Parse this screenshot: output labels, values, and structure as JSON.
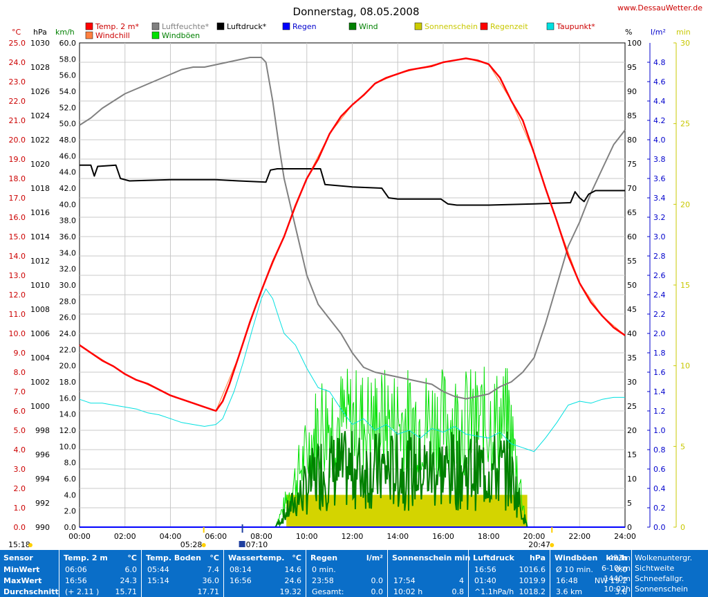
{
  "header": {
    "title": "Donnerstag, 08.05.2008",
    "website": "www.DessauWetter.de"
  },
  "legend": {
    "row1": [
      {
        "label": "Temp. 2 m*",
        "color": "#ff0000",
        "text_color": "#cc0000"
      },
      {
        "label": "Luftfeuchte*",
        "color": "#808080",
        "text_color": "#808080"
      },
      {
        "label": "Luftdruck*",
        "color": "#000000",
        "text_color": "#000000"
      },
      {
        "label": "Regen",
        "color": "#0000ff",
        "text_color": "#0000cc"
      },
      {
        "label": "Wind",
        "color": "#008000",
        "text_color": "#008000"
      },
      {
        "label": "Sonnenschein",
        "color": "#cccc00",
        "text_color": "#c8c800"
      },
      {
        "label": "Regenzeit",
        "color": "#ff0000",
        "text_color": "#c8c800"
      },
      {
        "label": "Taupunkt*",
        "color": "#00e0e0",
        "text_color": "#cc0000"
      }
    ],
    "row2": [
      {
        "label": "Windchill",
        "color": "#ff8040",
        "text_color": "#cc0000"
      },
      {
        "label": "Windböen",
        "color": "#00e000",
        "text_color": "#008000"
      }
    ]
  },
  "axis_units": {
    "temp": "°C",
    "pressure": "hPa",
    "wind": "km/h",
    "humidity": "%",
    "rain": "l/m²",
    "sunshine": "min"
  },
  "axis_ticks": {
    "temp": [
      "25.0",
      "24.0",
      "23.0",
      "22.0",
      "21.0",
      "20.0",
      "19.0",
      "18.0",
      "17.0",
      "16.0",
      "15.0",
      "14.0",
      "13.0",
      "12.0",
      "11.0",
      "10.0",
      "9.0",
      "8.0",
      "7.0",
      "6.0",
      "5.0",
      "4.0",
      "3.0",
      "2.0",
      "1.0",
      "0.0"
    ],
    "pressure": [
      "1030",
      "1028",
      "1026",
      "1024",
      "1022",
      "1020",
      "1018",
      "1016",
      "1014",
      "1012",
      "1010",
      "1008",
      "1006",
      "1004",
      "1002",
      "1000",
      "998",
      "996",
      "994",
      "992",
      "990"
    ],
    "wind": [
      "60.0",
      "58.0",
      "56.0",
      "54.0",
      "52.0",
      "50.0",
      "48.0",
      "46.0",
      "44.0",
      "42.0",
      "40.0",
      "38.0",
      "36.0",
      "34.0",
      "32.0",
      "30.0",
      "28.0",
      "26.0",
      "24.0",
      "22.0",
      "20.0",
      "18.0",
      "16.0",
      "14.0",
      "12.0",
      "10.0",
      "8.0",
      "6.0",
      "4.0",
      "2.0",
      "0.0"
    ],
    "humidity": [
      "100",
      "95",
      "90",
      "85",
      "80",
      "75",
      "70",
      "65",
      "60",
      "55",
      "50",
      "45",
      "40",
      "35",
      "30",
      "25",
      "20",
      "15",
      "10",
      "5",
      "0"
    ],
    "rain": [
      "4.8",
      "4.6",
      "4.4",
      "4.2",
      "4.0",
      "3.8",
      "3.6",
      "3.4",
      "3.2",
      "3.0",
      "2.8",
      "2.6",
      "2.4",
      "2.2",
      "2.0",
      "1.8",
      "1.6",
      "1.4",
      "1.2",
      "1.0",
      "0.8",
      "0.6",
      "0.4",
      "0.2",
      "0.0"
    ],
    "sunshine": [
      "30",
      "25",
      "20",
      "15",
      "10",
      "5",
      "0"
    ],
    "time": [
      "00:00",
      "02:00",
      "04:00",
      "06:00",
      "08:00",
      "10:00",
      "12:00",
      "14:00",
      "16:00",
      "18:00",
      "20:00",
      "22:00",
      "24:00"
    ]
  },
  "markers": {
    "moonset": "15:18",
    "sunrise": "05:28",
    "moonrise": "07:10",
    "sunset": "20:47"
  },
  "chart_data": {
    "type": "line",
    "title": "Donnerstag, 08.05.2008",
    "x_unit": "hours",
    "x_range": [
      0,
      24
    ],
    "axes": {
      "temp_range": [
        0,
        25
      ],
      "pressure_range": [
        990,
        1030
      ],
      "wind_range": [
        0,
        60
      ],
      "humidity_range": [
        0,
        100
      ],
      "rain_range": [
        0,
        5
      ],
      "sunshine_range": [
        0,
        30
      ]
    },
    "series": [
      {
        "name": "Temp. 2 m*",
        "axis": "temp",
        "color": "#ff0000",
        "points": [
          [
            0,
            9.4
          ],
          [
            0.5,
            9.0
          ],
          [
            1,
            8.6
          ],
          [
            1.5,
            8.3
          ],
          [
            2,
            7.9
          ],
          [
            2.5,
            7.6
          ],
          [
            3,
            7.4
          ],
          [
            3.5,
            7.1
          ],
          [
            4,
            6.8
          ],
          [
            4.5,
            6.6
          ],
          [
            5,
            6.4
          ],
          [
            5.5,
            6.2
          ],
          [
            6,
            6.0
          ],
          [
            6.3,
            6.5
          ],
          [
            6.6,
            7.4
          ],
          [
            7,
            8.8
          ],
          [
            7.5,
            10.6
          ],
          [
            8,
            12.2
          ],
          [
            8.5,
            13.7
          ],
          [
            9,
            15.0
          ],
          [
            9.5,
            16.6
          ],
          [
            10,
            18.0
          ],
          [
            10.5,
            19.0
          ],
          [
            11,
            20.3
          ],
          [
            11.5,
            21.2
          ],
          [
            12,
            21.8
          ],
          [
            12.5,
            22.3
          ],
          [
            13,
            22.9
          ],
          [
            13.5,
            23.2
          ],
          [
            14,
            23.4
          ],
          [
            14.5,
            23.6
          ],
          [
            15,
            23.7
          ],
          [
            15.5,
            23.8
          ],
          [
            16,
            24.0
          ],
          [
            16.5,
            24.1
          ],
          [
            17,
            24.2
          ],
          [
            17.5,
            24.1
          ],
          [
            18,
            23.9
          ],
          [
            18.5,
            23.2
          ],
          [
            19,
            22.0
          ],
          [
            19.5,
            21.0
          ],
          [
            20,
            19.3
          ],
          [
            20.5,
            17.5
          ],
          [
            21,
            15.8
          ],
          [
            21.5,
            14.0
          ],
          [
            22,
            12.6
          ],
          [
            22.5,
            11.6
          ],
          [
            23,
            10.9
          ],
          [
            23.5,
            10.3
          ],
          [
            24,
            9.9
          ]
        ]
      },
      {
        "name": "Windchill",
        "axis": "temp",
        "color": "#ff8040",
        "points": [
          [
            0,
            9.4
          ],
          [
            2,
            7.9
          ],
          [
            4,
            6.8
          ],
          [
            6,
            6.0
          ],
          [
            7,
            8.8
          ],
          [
            8,
            12.2
          ],
          [
            9,
            15.0
          ],
          [
            10,
            18.0
          ],
          [
            11,
            20.3
          ],
          [
            12,
            21.8
          ],
          [
            13,
            22.9
          ],
          [
            14,
            23.4
          ],
          [
            15,
            23.7
          ],
          [
            16,
            24.0
          ],
          [
            17,
            24.2
          ],
          [
            18,
            23.9
          ],
          [
            19,
            22.0
          ],
          [
            20,
            19.3
          ],
          [
            21,
            15.8
          ],
          [
            22,
            12.6
          ],
          [
            23,
            10.9
          ],
          [
            24,
            9.9
          ]
        ]
      },
      {
        "name": "Luftfeuchte*",
        "axis": "humidity",
        "color": "#808080",
        "points": [
          [
            0,
            83
          ],
          [
            0.5,
            84.5
          ],
          [
            1,
            86.5
          ],
          [
            1.5,
            88
          ],
          [
            2,
            89.5
          ],
          [
            2.5,
            90.5
          ],
          [
            3,
            91.5
          ],
          [
            3.5,
            92.5
          ],
          [
            4,
            93.5
          ],
          [
            4.5,
            94.5
          ],
          [
            5,
            95
          ],
          [
            5.5,
            95
          ],
          [
            6,
            95.5
          ],
          [
            6.5,
            96
          ],
          [
            7,
            96.5
          ],
          [
            7.5,
            97
          ],
          [
            8,
            97
          ],
          [
            8.2,
            96
          ],
          [
            8.5,
            88
          ],
          [
            8.8,
            78
          ],
          [
            9,
            72
          ],
          [
            9.5,
            62
          ],
          [
            10,
            52
          ],
          [
            10.5,
            46
          ],
          [
            11,
            43
          ],
          [
            11.5,
            40
          ],
          [
            12,
            36
          ],
          [
            12.5,
            33
          ],
          [
            13,
            32
          ],
          [
            13.5,
            31.5
          ],
          [
            14,
            31
          ],
          [
            14.5,
            30.5
          ],
          [
            15,
            30
          ],
          [
            15.5,
            29.5
          ],
          [
            16,
            28
          ],
          [
            16.5,
            27
          ],
          [
            17,
            26.5
          ],
          [
            17.5,
            27
          ],
          [
            18,
            27.5
          ],
          [
            18.5,
            29
          ],
          [
            19,
            30
          ],
          [
            19.5,
            32
          ],
          [
            20,
            35
          ],
          [
            20.5,
            42
          ],
          [
            21,
            50
          ],
          [
            21.5,
            58
          ],
          [
            22,
            63
          ],
          [
            22.5,
            69
          ],
          [
            23,
            74
          ],
          [
            23.5,
            79
          ],
          [
            24,
            82
          ]
        ]
      },
      {
        "name": "Luftdruck*",
        "axis": "pressure",
        "color": "#000000",
        "points": [
          [
            0,
            1019.9
          ],
          [
            0.5,
            1019.9
          ],
          [
            0.65,
            1019.0
          ],
          [
            0.8,
            1019.8
          ],
          [
            1.6,
            1019.9
          ],
          [
            1.8,
            1018.8
          ],
          [
            2.2,
            1018.6
          ],
          [
            4,
            1018.7
          ],
          [
            6,
            1018.7
          ],
          [
            7,
            1018.6
          ],
          [
            8.2,
            1018.5
          ],
          [
            8.4,
            1019.5
          ],
          [
            8.7,
            1019.6
          ],
          [
            10.6,
            1019.6
          ],
          [
            10.8,
            1018.3
          ],
          [
            12,
            1018.1
          ],
          [
            13.3,
            1018.0
          ],
          [
            13.6,
            1017.2
          ],
          [
            14,
            1017.1
          ],
          [
            15.9,
            1017.1
          ],
          [
            16.2,
            1016.7
          ],
          [
            16.6,
            1016.6
          ],
          [
            18,
            1016.6
          ],
          [
            20,
            1016.7
          ],
          [
            21.6,
            1016.8
          ],
          [
            21.8,
            1017.7
          ],
          [
            22,
            1017.2
          ],
          [
            22.2,
            1016.9
          ],
          [
            22.4,
            1017.5
          ],
          [
            22.7,
            1017.8
          ],
          [
            24,
            1017.8
          ]
        ]
      },
      {
        "name": "Taupunkt*",
        "axis": "temp",
        "color": "#00e0e0",
        "points": [
          [
            0,
            6.6
          ],
          [
            0.5,
            6.4
          ],
          [
            1,
            6.4
          ],
          [
            1.5,
            6.3
          ],
          [
            2,
            6.2
          ],
          [
            2.5,
            6.1
          ],
          [
            3,
            5.9
          ],
          [
            3.5,
            5.8
          ],
          [
            4,
            5.6
          ],
          [
            4.5,
            5.4
          ],
          [
            5,
            5.3
          ],
          [
            5.5,
            5.2
          ],
          [
            6,
            5.3
          ],
          [
            6.3,
            5.6
          ],
          [
            6.8,
            7.0
          ],
          [
            7.2,
            8.5
          ],
          [
            7.6,
            10.2
          ],
          [
            8,
            11.8
          ],
          [
            8.2,
            12.3
          ],
          [
            8.5,
            11.8
          ],
          [
            8.8,
            10.7
          ],
          [
            9,
            10.0
          ],
          [
            9.5,
            9.4
          ],
          [
            10,
            8.2
          ],
          [
            10.5,
            7.2
          ],
          [
            11,
            7.0
          ],
          [
            11.5,
            6.1
          ],
          [
            12,
            5.3
          ],
          [
            12.5,
            5.6
          ],
          [
            13,
            5.0
          ],
          [
            13.5,
            5.3
          ],
          [
            14,
            4.8
          ],
          [
            14.5,
            5.0
          ],
          [
            15,
            4.6
          ],
          [
            15.5,
            5.1
          ],
          [
            16,
            4.9
          ],
          [
            16.5,
            5.2
          ],
          [
            17,
            4.8
          ],
          [
            17.5,
            4.7
          ],
          [
            18,
            4.6
          ],
          [
            18.5,
            4.9
          ],
          [
            19,
            4.3
          ],
          [
            19.5,
            4.1
          ],
          [
            20,
            3.9
          ],
          [
            20.5,
            4.6
          ],
          [
            21,
            5.4
          ],
          [
            21.5,
            6.3
          ],
          [
            22,
            6.5
          ],
          [
            22.5,
            6.4
          ],
          [
            23,
            6.6
          ],
          [
            23.5,
            6.7
          ],
          [
            24,
            6.7
          ]
        ]
      },
      {
        "name": "Wind",
        "axis": "wind",
        "color": "#008000",
        "summary": "avg wind approx 0 before 08:30, 4-16 km/h between 09:00 and 20:00, 0 after"
      },
      {
        "name": "Windböen",
        "axis": "wind",
        "color": "#00e000",
        "summary": "gusts up to approx 19 km/h between 10:30 and 19:30"
      },
      {
        "name": "Sonnenschein",
        "axis": "sunshine",
        "color": "#cccc00",
        "bars": [
          [
            9.1,
            19.7,
            4
          ]
        ]
      }
    ]
  },
  "stats": {
    "row_labels": [
      "Sensor",
      "MinWert",
      "MaxWert",
      "Durchschnitt"
    ],
    "columns": [
      {
        "header_left": "Temp. 2 m",
        "header_right": "°C",
        "rows": [
          [
            "06:06",
            "6.0"
          ],
          [
            "16:56",
            "24.3"
          ],
          [
            "(+ 2.11 )",
            "15.71"
          ]
        ]
      },
      {
        "header_left": "Temp. Boden",
        "header_right": "°C",
        "rows": [
          [
            "05:44",
            "7.4"
          ],
          [
            "15:14",
            "36.0"
          ],
          [
            "",
            "17.71"
          ]
        ]
      },
      {
        "header_left": "Wassertemp.",
        "header_right": "°C",
        "rows": [
          [
            "08:14",
            "14.6"
          ],
          [
            "16:56",
            "24.6"
          ],
          [
            "",
            "19.32"
          ]
        ]
      },
      {
        "header_left": "Regen",
        "header_right": "l/m²",
        "rows": [
          [
            "0 min.",
            ""
          ],
          [
            "23:58",
            "0.0"
          ],
          [
            "Gesamt:",
            "0.0"
          ]
        ]
      },
      {
        "header_left": "Sonnenschein min",
        "header_right": "",
        "rows": [
          [
            "",
            ""
          ],
          [
            "17:54",
            "4"
          ],
          [
            "10:02 h",
            "0.8"
          ]
        ]
      },
      {
        "header_left": "Luftdruck",
        "header_right": "hPa",
        "rows": [
          [
            "16:56",
            "1016.6"
          ],
          [
            "01:40",
            "1019.9"
          ],
          [
            "^1.1hPa/h",
            "1018.2"
          ]
        ]
      },
      {
        "header_left": "Windböen",
        "header_right": "km/h",
        "rows": [
          [
            "Ø 10 min.",
            "0.0"
          ],
          [
            "16:48",
            "NW 19.2"
          ],
          [
            "3.6 km",
            "3.6"
          ]
        ]
      },
      {
        "header_left": "",
        "header_right": "",
        "rows": [
          [
            "Wolkenuntergr.",
            "423m"
          ],
          [
            "Sichtweite",
            "6-10km"
          ],
          [
            "Schneefallgr.",
            "1440m"
          ],
          [
            "Sonnenschein",
            "10:02h"
          ]
        ]
      }
    ]
  }
}
